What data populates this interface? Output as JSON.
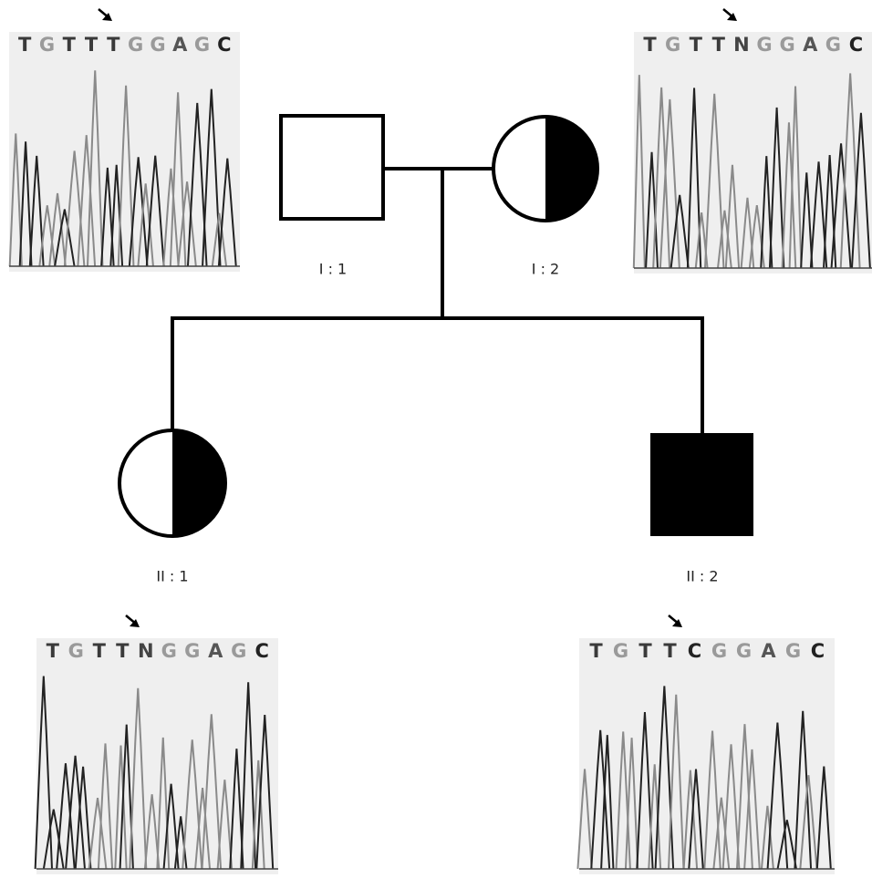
{
  "nodes": [
    {
      "label": "I : 1"
    },
    {
      "label": "I : 2"
    },
    {
      "label": "II : 1"
    },
    {
      "label": "II : 2"
    }
  ],
  "chromatograms": [
    {
      "sequence": [
        "T",
        "G",
        "T",
        "T",
        "T",
        "G",
        "G",
        "A",
        "G",
        "C"
      ]
    },
    {
      "sequence": [
        "T",
        "G",
        "T",
        "T",
        "N",
        "G",
        "G",
        "A",
        "G",
        "C"
      ]
    },
    {
      "sequence": [
        "T",
        "G",
        "T",
        "T",
        "N",
        "G",
        "G",
        "A",
        "G",
        "C"
      ]
    },
    {
      "sequence": [
        "T",
        "G",
        "T",
        "T",
        "C",
        "G",
        "G",
        "A",
        "G",
        "C"
      ]
    }
  ]
}
